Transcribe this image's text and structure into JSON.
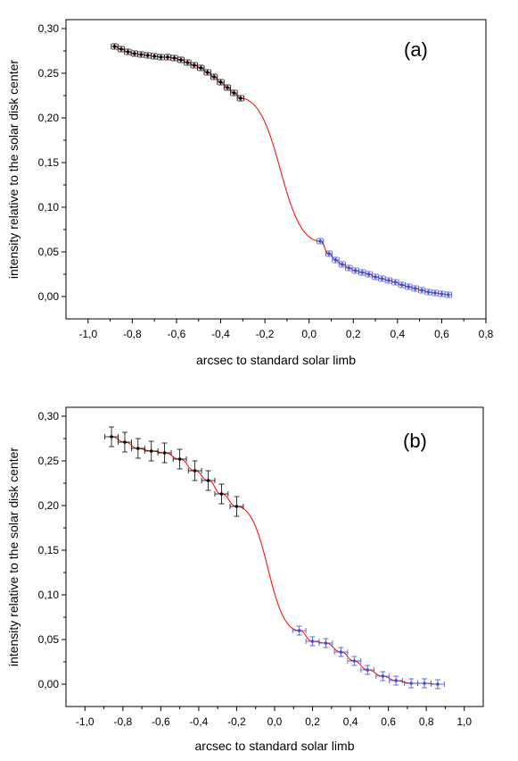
{
  "chart_data": [
    {
      "type": "scatter",
      "panel_label": "(a)",
      "xlabel": "arcsec to standard solar limb",
      "ylabel": "intensity relative to the solar disk center",
      "xlim": [
        -1.1,
        0.8
      ],
      "ylim": [
        -0.025,
        0.31
      ],
      "x_ticks": [
        -1.0,
        -0.8,
        -0.6,
        -0.4,
        -0.2,
        0.0,
        0.2,
        0.4,
        0.6,
        0.8
      ],
      "x_tick_labels": [
        "-1,0",
        "-0,8",
        "-0,6",
        "-0,4",
        "-0,2",
        "0,0",
        "0,2",
        "0,4",
        "0,6",
        "0,8"
      ],
      "y_ticks": [
        0.0,
        0.05,
        0.1,
        0.15,
        0.2,
        0.25,
        0.3
      ],
      "y_tick_labels": [
        "0,00",
        "0,05",
        "0,10",
        "0,15",
        "0,20",
        "0,25",
        "0,30"
      ],
      "grid": false,
      "fit_color": "#ff0000",
      "series": [
        {
          "color": "#000000",
          "x": [
            -0.88,
            -0.85,
            -0.82,
            -0.79,
            -0.76,
            -0.73,
            -0.7,
            -0.67,
            -0.64,
            -0.61,
            -0.58,
            -0.55,
            -0.52,
            -0.49,
            -0.46,
            -0.43,
            -0.4,
            -0.37,
            -0.34,
            -0.31
          ],
          "y": [
            0.28,
            0.277,
            0.274,
            0.272,
            0.271,
            0.27,
            0.269,
            0.268,
            0.268,
            0.267,
            0.265,
            0.262,
            0.259,
            0.256,
            0.251,
            0.246,
            0.24,
            0.234,
            0.228,
            0.222
          ],
          "xerr": 0.015,
          "yerr": 0.003
        },
        {
          "color": "#3a4fd8",
          "x": [
            0.05,
            0.09,
            0.12,
            0.15,
            0.18,
            0.21,
            0.24,
            0.27,
            0.3,
            0.33,
            0.36,
            0.39,
            0.42,
            0.45,
            0.48,
            0.51,
            0.54,
            0.57,
            0.6,
            0.63
          ],
          "y": [
            0.062,
            0.048,
            0.041,
            0.036,
            0.032,
            0.029,
            0.027,
            0.025,
            0.022,
            0.02,
            0.018,
            0.016,
            0.013,
            0.011,
            0.009,
            0.007,
            0.005,
            0.004,
            0.003,
            0.002
          ],
          "xerr": 0.015,
          "yerr": 0.003
        }
      ]
    },
    {
      "type": "scatter",
      "panel_label": "(b)",
      "xlabel": "arcsec to standard solar limb",
      "ylabel": "intensity relative to the solar disk center",
      "xlim": [
        -1.1,
        1.1
      ],
      "ylim": [
        -0.025,
        0.31
      ],
      "x_ticks": [
        -1.0,
        -0.8,
        -0.6,
        -0.4,
        -0.2,
        0.0,
        0.2,
        0.4,
        0.6,
        0.8,
        1.0
      ],
      "x_tick_labels": [
        "-1,0",
        "-0,8",
        "-0,6",
        "-0,4",
        "-0,2",
        "0,0",
        "0,2",
        "0,4",
        "0,6",
        "0,8",
        "1,0"
      ],
      "y_ticks": [
        0.0,
        0.05,
        0.1,
        0.15,
        0.2,
        0.25,
        0.3
      ],
      "y_tick_labels": [
        "0,00",
        "0,05",
        "0,10",
        "0,15",
        "0,20",
        "0,25",
        "0,30"
      ],
      "grid": false,
      "fit_color": "#ff0000",
      "series": [
        {
          "color": "#000000",
          "x": [
            -0.86,
            -0.79,
            -0.72,
            -0.65,
            -0.58,
            -0.5,
            -0.42,
            -0.35,
            -0.28,
            -0.2
          ],
          "y": [
            0.277,
            0.271,
            0.264,
            0.261,
            0.259,
            0.252,
            0.239,
            0.228,
            0.213,
            0.199
          ],
          "xerr": 0.035,
          "yerr": 0.011
        },
        {
          "color": "#3a4fd8",
          "x": [
            0.13,
            0.2,
            0.27,
            0.35,
            0.42,
            0.49,
            0.57,
            0.64,
            0.72,
            0.79,
            0.86
          ],
          "y": [
            0.06,
            0.048,
            0.046,
            0.036,
            0.026,
            0.016,
            0.009,
            0.004,
            0.001,
            0.001,
            0.0
          ],
          "xerr": 0.035,
          "yerr": 0.005
        }
      ]
    }
  ]
}
